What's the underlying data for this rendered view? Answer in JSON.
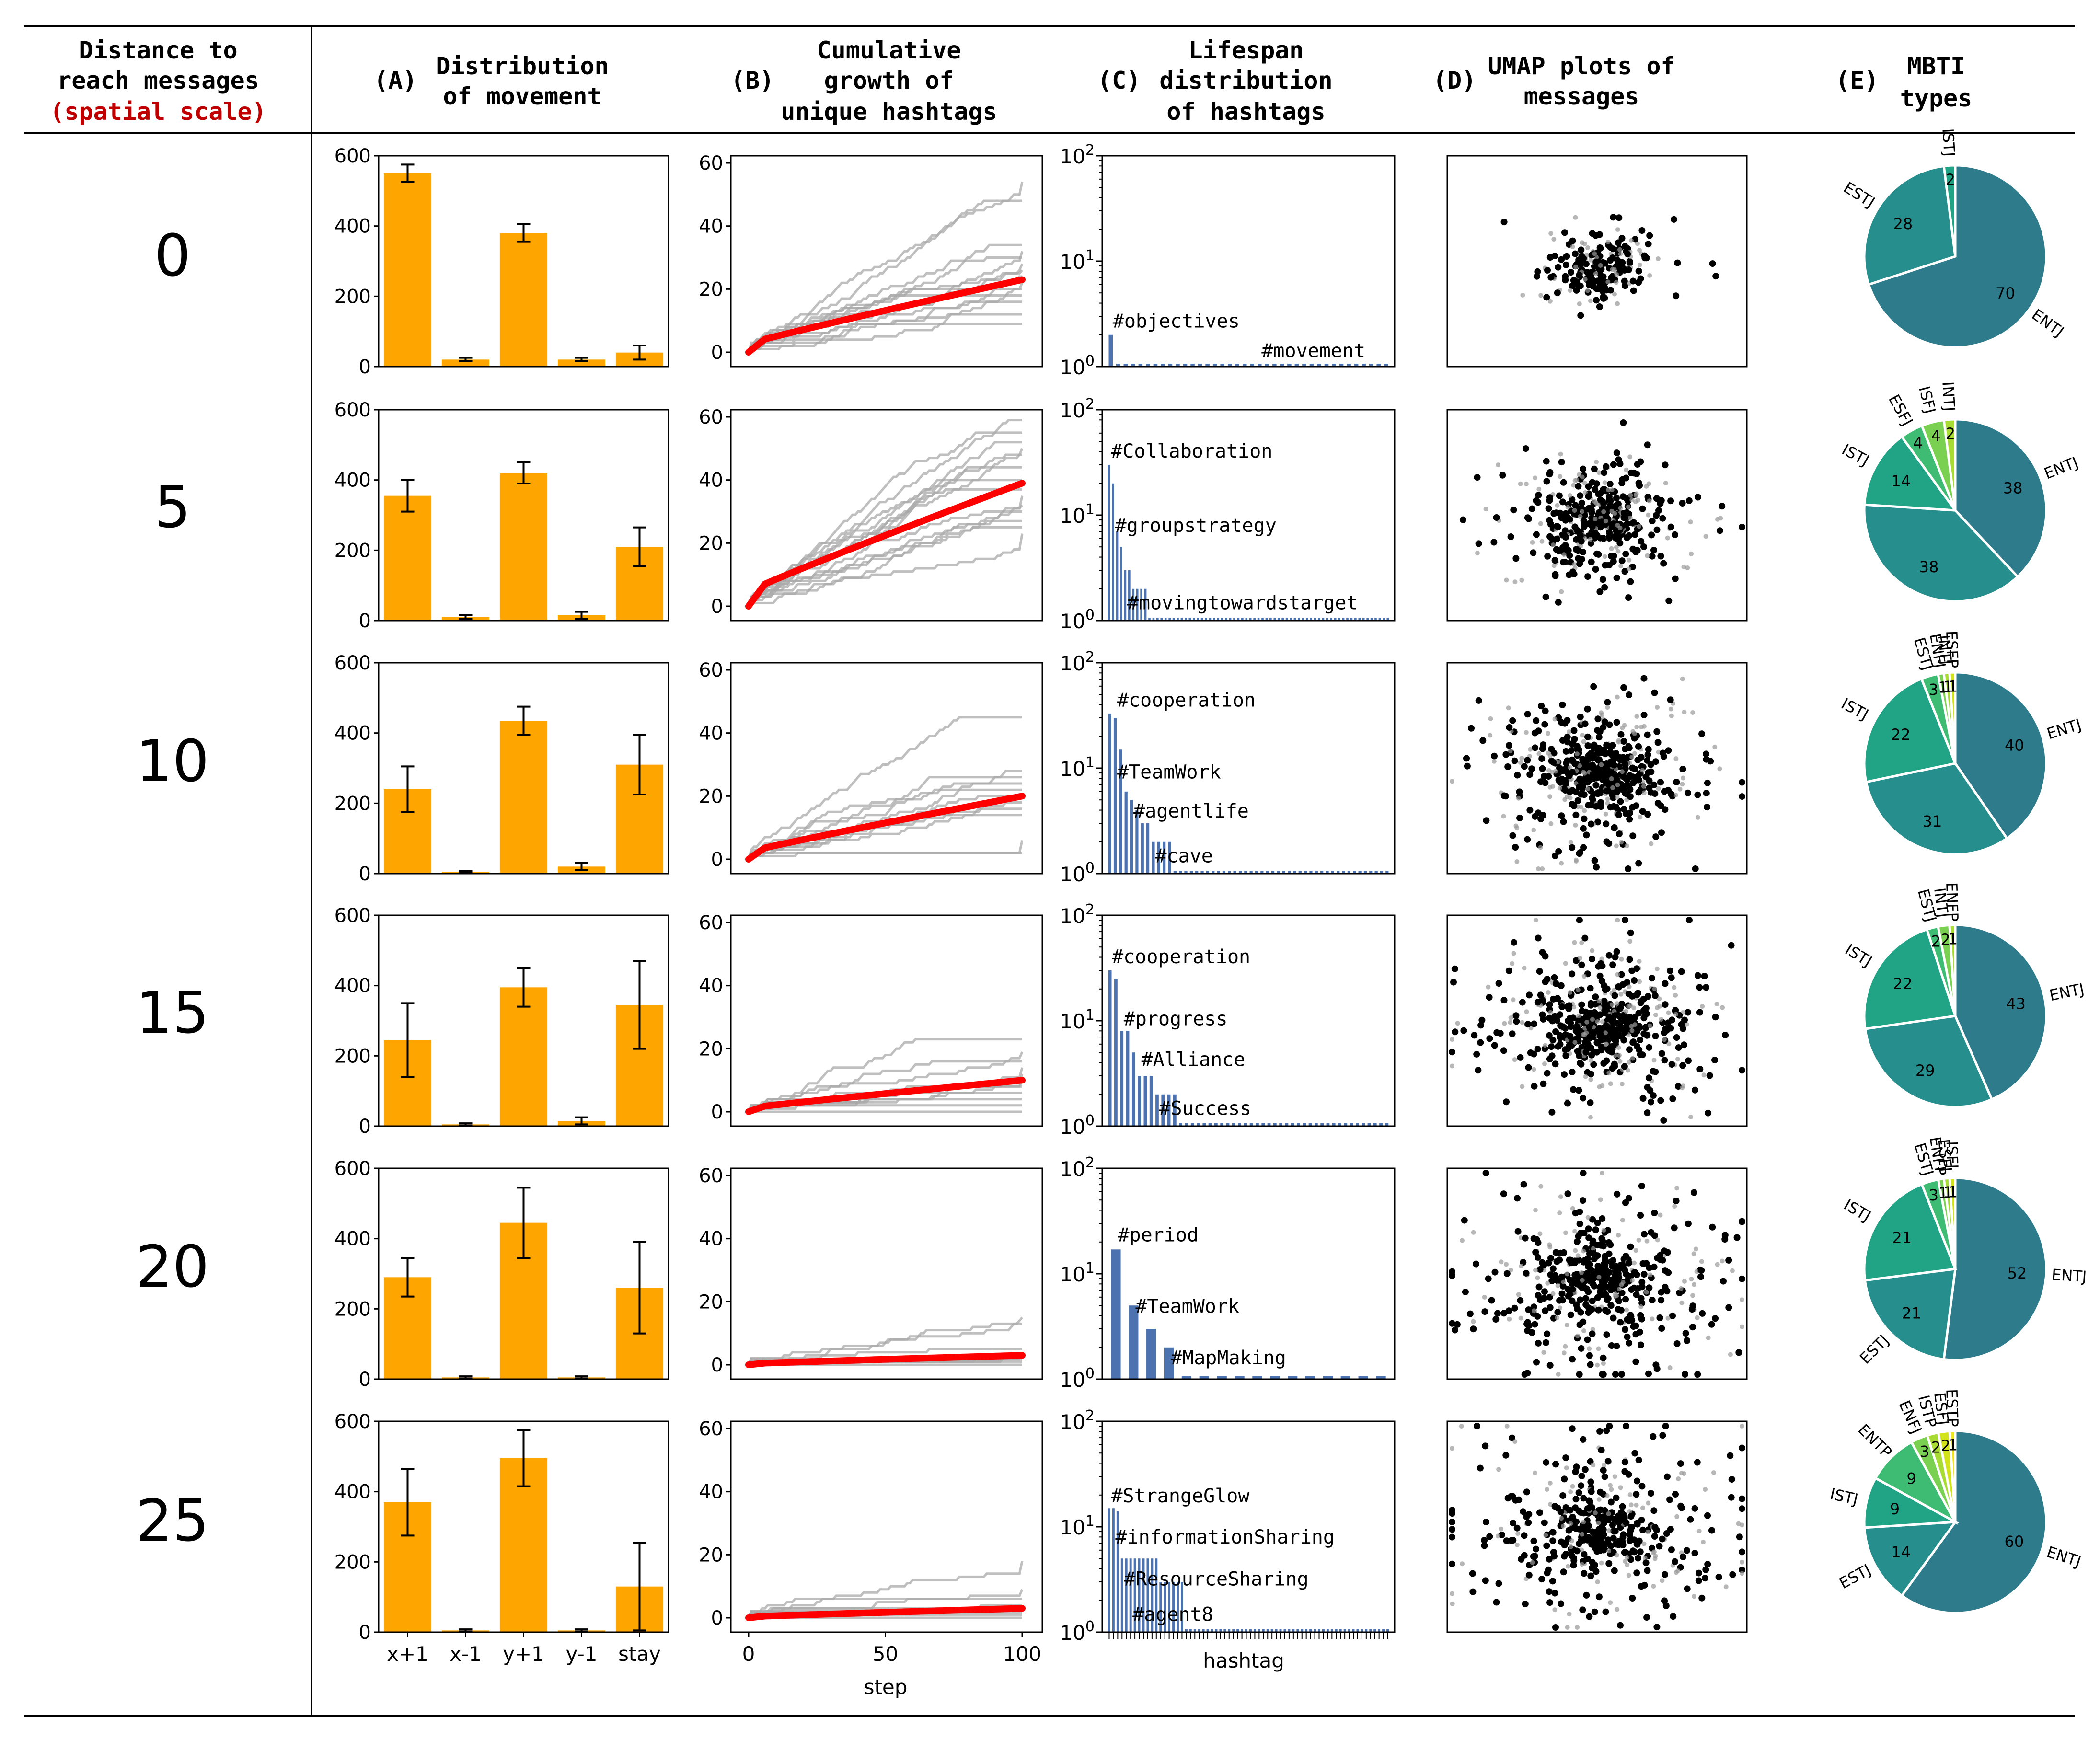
{
  "header": {
    "col0": [
      "Distance to",
      "reach messages"
    ],
    "col0_red": "(spatial scale)",
    "A": {
      "letter": "(A)",
      "lines": [
        "Distribution",
        "of movement"
      ]
    },
    "B": {
      "letter": "(B)",
      "lines": [
        "Cumulative",
        "growth of",
        "unique hashtags"
      ]
    },
    "C": {
      "letter": "(C)",
      "lines": [
        "Lifespan",
        "distribution",
        "of hashtags"
      ]
    },
    "D": {
      "letter": "(D)",
      "lines": [
        "UMAP plots of",
        "messages"
      ]
    },
    "E": {
      "letter": "(E)",
      "lines": [
        "MBTI",
        "types"
      ]
    }
  },
  "colors": {
    "bar": "#FFA500",
    "red_line": "#FF0000",
    "gray_line": "#AAAAAA",
    "hist_bar": "#4C72B0",
    "header_red": "#C00000",
    "pie": [
      "#2E7B8C",
      "#268F8D",
      "#21A386",
      "#3FBC73",
      "#7AD151",
      "#A8DB34",
      "#D2E21B",
      "#EFE51C"
    ]
  },
  "axis_labels": {
    "A_x": "",
    "B_x": "step",
    "C_x": "hashtag"
  },
  "chart_data": [
    {
      "type": "bar",
      "panel": "A",
      "row": 0,
      "categories": [
        "x+1",
        "x-1",
        "y+1",
        "y-1",
        "stay"
      ],
      "values": [
        550,
        20,
        380,
        20,
        40
      ],
      "errors": [
        25,
        5,
        25,
        5,
        20
      ],
      "ylim": [
        0,
        600
      ],
      "yticks": [
        0,
        200,
        400,
        600
      ]
    },
    {
      "type": "bar",
      "panel": "A",
      "row": 1,
      "categories": [
        "x+1",
        "x-1",
        "y+1",
        "y-1",
        "stay"
      ],
      "values": [
        355,
        10,
        420,
        15,
        210
      ],
      "errors": [
        45,
        5,
        30,
        10,
        55
      ],
      "ylim": [
        0,
        600
      ],
      "yticks": [
        0,
        200,
        400,
        600
      ]
    },
    {
      "type": "bar",
      "panel": "A",
      "row": 2,
      "categories": [
        "x+1",
        "x-1",
        "y+1",
        "y-1",
        "stay"
      ],
      "values": [
        240,
        5,
        435,
        20,
        310
      ],
      "errors": [
        65,
        3,
        40,
        10,
        85
      ],
      "ylim": [
        0,
        600
      ],
      "yticks": [
        0,
        200,
        400,
        600
      ]
    },
    {
      "type": "bar",
      "panel": "A",
      "row": 3,
      "categories": [
        "x+1",
        "x-1",
        "y+1",
        "y-1",
        "stay"
      ],
      "values": [
        245,
        5,
        395,
        15,
        345
      ],
      "errors": [
        105,
        3,
        55,
        10,
        125
      ],
      "ylim": [
        0,
        600
      ],
      "yticks": [
        0,
        200,
        400,
        600
      ]
    },
    {
      "type": "bar",
      "panel": "A",
      "row": 4,
      "categories": [
        "x+1",
        "x-1",
        "y+1",
        "y-1",
        "stay"
      ],
      "values": [
        290,
        5,
        445,
        5,
        260
      ],
      "errors": [
        55,
        3,
        100,
        3,
        130
      ],
      "ylim": [
        0,
        600
      ],
      "yticks": [
        0,
        200,
        400,
        600
      ]
    },
    {
      "type": "bar",
      "panel": "A",
      "row": 5,
      "categories": [
        "x+1",
        "x-1",
        "y+1",
        "y-1",
        "stay"
      ],
      "values": [
        370,
        5,
        495,
        5,
        130
      ],
      "errors": [
        95,
        3,
        80,
        3,
        125
      ],
      "ylim": [
        0,
        600
      ],
      "yticks": [
        0,
        200,
        400,
        600
      ]
    },
    {
      "type": "line",
      "panel": "B",
      "row": 0,
      "xlim": [
        0,
        100
      ],
      "ylim": [
        0,
        60
      ],
      "yticks": [
        0,
        20,
        40,
        60
      ],
      "xticks": [
        0,
        50,
        100
      ],
      "mean_final": 23,
      "runs_final": [
        54,
        48,
        34,
        32,
        30,
        28,
        26,
        24,
        22,
        20,
        18,
        16,
        12,
        9
      ]
    },
    {
      "type": "line",
      "panel": "B",
      "row": 1,
      "xlim": [
        0,
        100
      ],
      "ylim": [
        0,
        60
      ],
      "yticks": [
        0,
        20,
        40,
        60
      ],
      "xticks": [
        0,
        50,
        100
      ],
      "mean_final": 39,
      "runs_final": [
        59,
        55,
        52,
        50,
        48,
        44,
        40,
        37,
        35,
        32,
        30,
        27,
        25,
        23
      ]
    },
    {
      "type": "line",
      "panel": "B",
      "row": 2,
      "xlim": [
        0,
        100
      ],
      "ylim": [
        0,
        60
      ],
      "yticks": [
        0,
        20,
        40,
        60
      ],
      "xticks": [
        0,
        50,
        100
      ],
      "mean_final": 20,
      "runs_final": [
        45,
        28,
        26,
        24,
        22,
        20,
        18,
        16,
        14,
        6,
        2
      ]
    },
    {
      "type": "line",
      "panel": "B",
      "row": 3,
      "xlim": [
        0,
        100
      ],
      "ylim": [
        0,
        60
      ],
      "yticks": [
        0,
        20,
        40,
        60
      ],
      "xticks": [
        0,
        50,
        100
      ],
      "mean_final": 10,
      "runs_final": [
        23,
        19,
        16,
        14,
        12,
        10,
        9,
        8,
        6,
        4,
        2,
        0
      ]
    },
    {
      "type": "line",
      "panel": "B",
      "row": 4,
      "xlim": [
        0,
        100
      ],
      "ylim": [
        0,
        60
      ],
      "yticks": [
        0,
        20,
        40,
        60
      ],
      "xticks": [
        0,
        50,
        100
      ],
      "mean_final": 3,
      "runs_final": [
        15,
        13,
        5,
        3,
        2,
        1,
        0
      ]
    },
    {
      "type": "line",
      "panel": "B",
      "row": 5,
      "xlim": [
        0,
        100
      ],
      "ylim": [
        0,
        60
      ],
      "yticks": [
        0,
        20,
        40,
        60
      ],
      "xticks": [
        0,
        50,
        100
      ],
      "mean_final": 3,
      "runs_final": [
        18,
        9,
        6,
        4,
        3,
        2,
        1,
        0
      ]
    },
    {
      "type": "bar",
      "panel": "C",
      "row": 0,
      "scale": "log",
      "ylim": [
        1,
        100
      ],
      "counts": [
        2,
        1,
        1,
        1,
        1,
        1,
        1,
        1,
        1,
        1,
        1,
        1,
        1,
        1,
        1,
        1,
        1,
        1,
        1,
        1,
        1,
        1,
        1,
        1,
        1,
        1,
        1,
        1,
        1,
        1,
        1,
        1,
        1,
        1,
        1,
        1,
        1,
        1
      ],
      "labels": [
        {
          "text": "#objectives",
          "bar": 0,
          "y": 2.2
        },
        {
          "text": "#movement",
          "bar": 20,
          "y": 1.15
        }
      ]
    },
    {
      "type": "bar",
      "panel": "C",
      "row": 1,
      "scale": "log",
      "ylim": [
        1,
        100
      ],
      "counts": [
        30,
        20,
        7,
        5,
        3,
        3,
        2,
        2,
        2,
        2,
        1,
        1,
        1,
        1,
        1,
        1,
        1,
        1,
        1,
        1,
        1,
        1,
        1,
        1,
        1,
        1,
        1,
        1,
        1,
        1,
        1,
        1,
        1,
        1,
        1,
        1,
        1,
        1,
        1,
        1,
        1,
        1,
        1,
        1,
        1,
        1,
        1,
        1,
        1,
        1,
        1,
        1,
        1,
        1,
        1,
        1,
        1,
        1,
        1,
        1,
        1,
        1,
        1,
        1,
        1,
        1,
        1,
        1,
        1,
        1
      ],
      "labels": [
        {
          "text": "#Collaboration",
          "bar": 0,
          "y": 33
        },
        {
          "text": "#groupstrategy",
          "bar": 1,
          "y": 6.5
        },
        {
          "text": "#movingtowardstarget",
          "bar": 4,
          "y": 1.2
        }
      ]
    },
    {
      "type": "bar",
      "panel": "C",
      "row": 2,
      "scale": "log",
      "ylim": [
        1,
        100
      ],
      "counts": [
        33,
        30,
        15,
        6,
        5,
        4,
        3,
        3,
        2,
        2,
        2,
        2,
        1,
        1,
        1,
        1,
        1,
        1,
        1,
        1,
        1,
        1,
        1,
        1,
        1,
        1,
        1,
        1,
        1,
        1,
        1,
        1,
        1,
        1,
        1,
        1,
        1,
        1,
        1,
        1,
        1,
        1,
        1,
        1,
        1,
        1,
        1,
        1,
        1,
        1,
        1,
        1
      ],
      "labels": [
        {
          "text": "#cooperation",
          "bar": 1,
          "y": 36
        },
        {
          "text": "#TeamWork",
          "bar": 1,
          "y": 7.5
        },
        {
          "text": "#agentlife",
          "bar": 4,
          "y": 3.2
        },
        {
          "text": "#cave",
          "bar": 8,
          "y": 1.2
        }
      ]
    },
    {
      "type": "bar",
      "panel": "C",
      "row": 3,
      "scale": "log",
      "ylim": [
        1,
        100
      ],
      "counts": [
        30,
        25,
        8,
        8,
        5,
        3,
        3,
        3,
        2,
        2,
        2,
        2,
        1,
        1,
        1,
        1,
        1,
        1,
        1,
        1,
        1,
        1,
        1,
        1,
        1,
        1,
        1,
        1,
        1,
        1,
        1,
        1,
        1,
        1,
        1,
        1,
        1,
        1,
        1,
        1,
        1,
        1,
        1,
        1,
        1,
        1,
        1,
        1
      ],
      "labels": [
        {
          "text": "#cooperation",
          "bar": 0,
          "y": 33
        },
        {
          "text": "#progress",
          "bar": 2,
          "y": 8.5
        },
        {
          "text": "#Alliance",
          "bar": 5,
          "y": 3.5
        },
        {
          "text": "#Success",
          "bar": 8,
          "y": 1.2
        }
      ]
    },
    {
      "type": "bar",
      "panel": "C",
      "row": 4,
      "scale": "log",
      "ylim": [
        1,
        100
      ],
      "counts": [
        17,
        5,
        3,
        2,
        1,
        1,
        1,
        1,
        1,
        1,
        1,
        1,
        1,
        1,
        1,
        1
      ],
      "labels": [
        {
          "text": "#period",
          "bar": 0,
          "y": 19
        },
        {
          "text": "#TeamWork",
          "bar": 1,
          "y": 4
        },
        {
          "text": "#MapMaking",
          "bar": 3,
          "y": 1.3
        }
      ]
    },
    {
      "type": "bar",
      "panel": "C",
      "row": 5,
      "scale": "log",
      "ylim": [
        1,
        100
      ],
      "counts": [
        15,
        15,
        14,
        5,
        5,
        5,
        5,
        5,
        5,
        5,
        5,
        5,
        3,
        3,
        3,
        3,
        3,
        3,
        1,
        1,
        1,
        1,
        1,
        1,
        1,
        1,
        1,
        1,
        1,
        1,
        1,
        1,
        1,
        1,
        1,
        1,
        1,
        1,
        1,
        1,
        1,
        1,
        1,
        1,
        1,
        1,
        1,
        1,
        1,
        1,
        1,
        1,
        1,
        1,
        1,
        1,
        1,
        1,
        1,
        1,
        1,
        1,
        1,
        1,
        1,
        1
      ],
      "labels": [
        {
          "text": "#StrangeGlow",
          "bar": 0,
          "y": 16
        },
        {
          "text": "#informationSharing",
          "bar": 1,
          "y": 6.5
        },
        {
          "text": "#ResourceSharing",
          "bar": 3,
          "y": 2.6
        },
        {
          "text": "#agent8",
          "bar": 5,
          "y": 1.2
        }
      ]
    },
    {
      "type": "scatter",
      "panel": "D",
      "row": 0,
      "n_points": 150,
      "spread": 0.18,
      "gray_fraction": 0.35
    },
    {
      "type": "scatter",
      "panel": "D",
      "row": 1,
      "n_points": 320,
      "spread": 0.28,
      "gray_fraction": 0.35
    },
    {
      "type": "scatter",
      "panel": "D",
      "row": 2,
      "n_points": 420,
      "spread": 0.32,
      "gray_fraction": 0.3
    },
    {
      "type": "scatter",
      "panel": "D",
      "row": 3,
      "n_points": 420,
      "spread": 0.33,
      "gray_fraction": 0.3
    },
    {
      "type": "scatter",
      "panel": "D",
      "row": 4,
      "n_points": 380,
      "spread": 0.4,
      "gray_fraction": 0.3
    },
    {
      "type": "scatter",
      "panel": "D",
      "row": 5,
      "n_points": 340,
      "spread": 0.42,
      "gray_fraction": 0.3
    },
    {
      "type": "pie",
      "panel": "E",
      "row": 0,
      "slices": [
        {
          "label": "ENTJ",
          "value": 70
        },
        {
          "label": "ESTJ",
          "value": 28
        },
        {
          "label": "ISTJ",
          "value": 2
        }
      ]
    },
    {
      "type": "pie",
      "panel": "E",
      "row": 1,
      "slices": [
        {
          "label": "ENTJ",
          "value": 38
        },
        {
          "label": "",
          "value": 38
        },
        {
          "label": "ISTJ",
          "value": 14
        },
        {
          "label": "ESFJ",
          "value": 4
        },
        {
          "label": "ISFJ",
          "value": 4
        },
        {
          "label": "INTJ",
          "value": 2
        }
      ]
    },
    {
      "type": "pie",
      "panel": "E",
      "row": 2,
      "slices": [
        {
          "label": "ENTJ",
          "value": 40
        },
        {
          "label": "",
          "value": 31
        },
        {
          "label": "ISTJ",
          "value": 22
        },
        {
          "label": "ESTJ",
          "value": 3
        },
        {
          "label": "ENFJ",
          "value": 1
        },
        {
          "label": "INTJ",
          "value": 1
        },
        {
          "label": "ESFP",
          "value": 1
        }
      ]
    },
    {
      "type": "pie",
      "panel": "E",
      "row": 3,
      "slices": [
        {
          "label": "ENTJ",
          "value": 43
        },
        {
          "label": "",
          "value": 29
        },
        {
          "label": "ISTJ",
          "value": 22
        },
        {
          "label": "ESTJ",
          "value": 2
        },
        {
          "label": "INTJ",
          "value": 2
        },
        {
          "label": "ENFP",
          "value": 1
        }
      ]
    },
    {
      "type": "pie",
      "panel": "E",
      "row": 4,
      "slices": [
        {
          "label": "ENTJ",
          "value": 52
        },
        {
          "label": "ESTJ",
          "value": 21
        },
        {
          "label": "ISTJ",
          "value": 21
        },
        {
          "label": "ESTJ",
          "value": 3
        },
        {
          "label": "ENFP",
          "value": 1
        },
        {
          "label": "ESFJ",
          "value": 1
        },
        {
          "label": "ISFJ",
          "value": 1
        }
      ]
    },
    {
      "type": "pie",
      "panel": "E",
      "row": 5,
      "slices": [
        {
          "label": "ENTJ",
          "value": 60
        },
        {
          "label": "ESTJ",
          "value": 14
        },
        {
          "label": "ISTJ",
          "value": 9
        },
        {
          "label": "ENTP",
          "value": 9
        },
        {
          "label": "ENFJ",
          "value": 3
        },
        {
          "label": "ISTP",
          "value": 2
        },
        {
          "label": "ESFJ",
          "value": 2
        },
        {
          "label": "ESTP",
          "value": 1
        }
      ]
    }
  ],
  "rows": [
    {
      "distance": "0"
    },
    {
      "distance": "5"
    },
    {
      "distance": "10"
    },
    {
      "distance": "15"
    },
    {
      "distance": "20"
    },
    {
      "distance": "25"
    }
  ]
}
